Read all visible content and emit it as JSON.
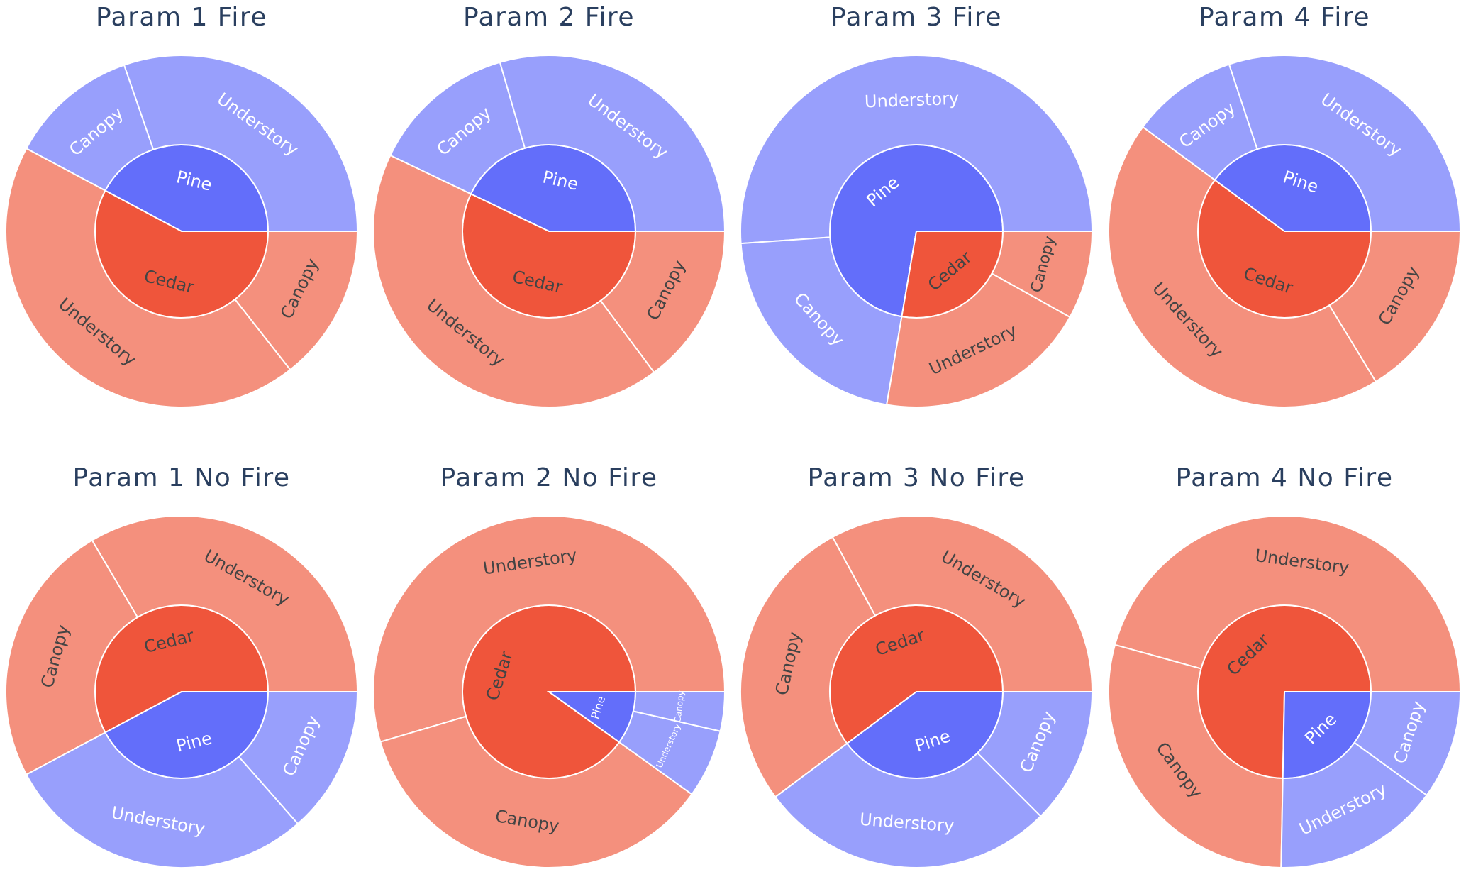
{
  "colors": {
    "pine_inner": "#636efa",
    "pine_outer": "#989ffc",
    "cedar_inner": "#ef553b",
    "cedar_outer": "#f4907d",
    "separator": "#ffffff",
    "title": "#2a3f5f",
    "label_on_blue": "#ffffff",
    "label_on_red": "#444444"
  },
  "chart_data": [
    {
      "type": "sunburst",
      "title": "Param 1 Fire",
      "rotation_deg": 0,
      "segments": [
        {
          "name": "Pine",
          "value": 0.422,
          "children": [
            {
              "name": "Understory",
              "value": 0.303
            },
            {
              "name": "Canopy",
              "value": 0.119
            }
          ]
        },
        {
          "name": "Cedar",
          "value": 0.578,
          "children": [
            {
              "name": "Understory",
              "value": 0.434
            },
            {
              "name": "Canopy",
              "value": 0.144
            }
          ]
        }
      ]
    },
    {
      "type": "sunburst",
      "title": "Param 2 Fire",
      "rotation_deg": 0,
      "segments": [
        {
          "name": "Pine",
          "value": 0.429,
          "children": [
            {
              "name": "Understory",
              "value": 0.295
            },
            {
              "name": "Canopy",
              "value": 0.134
            }
          ]
        },
        {
          "name": "Cedar",
          "value": 0.571,
          "children": [
            {
              "name": "Understory",
              "value": 0.423
            },
            {
              "name": "Canopy",
              "value": 0.148
            }
          ]
        }
      ]
    },
    {
      "type": "sunburst",
      "title": "Param 3 Fire",
      "rotation_deg": 0,
      "segments": [
        {
          "name": "Pine",
          "value": 0.723,
          "children": [
            {
              "name": "Understory",
              "value": 0.511
            },
            {
              "name": "Canopy",
              "value": 0.212
            }
          ]
        },
        {
          "name": "Cedar",
          "value": 0.277,
          "children": [
            {
              "name": "Understory",
              "value": 0.196
            },
            {
              "name": "Canopy",
              "value": 0.081
            }
          ]
        }
      ]
    },
    {
      "type": "sunburst",
      "title": "Param 4 Fire",
      "rotation_deg": 0,
      "segments": [
        {
          "name": "Pine",
          "value": 0.399,
          "children": [
            {
              "name": "Understory",
              "value": 0.301
            },
            {
              "name": "Canopy",
              "value": 0.098
            }
          ]
        },
        {
          "name": "Cedar",
          "value": 0.601,
          "children": [
            {
              "name": "Understory",
              "value": 0.438
            },
            {
              "name": "Canopy",
              "value": 0.163
            }
          ]
        }
      ]
    },
    {
      "type": "sunburst",
      "title": "Param 1 No Fire",
      "rotation_deg": 0,
      "segments": [
        {
          "name": "Cedar",
          "value": 0.578,
          "children": [
            {
              "name": "Understory",
              "value": 0.335
            },
            {
              "name": "Canopy",
              "value": 0.243
            }
          ]
        },
        {
          "name": "Pine",
          "value": 0.422,
          "children": [
            {
              "name": "Understory",
              "value": 0.287
            },
            {
              "name": "Canopy",
              "value": 0.135
            }
          ]
        }
      ]
    },
    {
      "type": "sunburst",
      "title": "Param 2 No Fire",
      "rotation_deg": 0,
      "segments": [
        {
          "name": "Cedar",
          "value": 0.901,
          "children": [
            {
              "name": "Understory",
              "value": 0.546
            },
            {
              "name": "Canopy",
              "value": 0.355
            }
          ]
        },
        {
          "name": "Pine",
          "value": 0.099,
          "children": [
            {
              "name": "Understory",
              "value": 0.063
            },
            {
              "name": "Canopy",
              "value": 0.036
            }
          ]
        }
      ]
    },
    {
      "type": "sunburst",
      "title": "Param 3 No Fire",
      "rotation_deg": 0,
      "segments": [
        {
          "name": "Cedar",
          "value": 0.602,
          "children": [
            {
              "name": "Understory",
              "value": 0.329
            },
            {
              "name": "Canopy",
              "value": 0.273
            }
          ]
        },
        {
          "name": "Pine",
          "value": 0.398,
          "children": [
            {
              "name": "Understory",
              "value": 0.273
            },
            {
              "name": "Canopy",
              "value": 0.125
            }
          ]
        }
      ]
    },
    {
      "type": "sunburst",
      "title": "Param 4 No Fire",
      "rotation_deg": 0,
      "segments": [
        {
          "name": "Cedar",
          "value": 0.747,
          "children": [
            {
              "name": "Understory",
              "value": 0.457
            },
            {
              "name": "Canopy",
              "value": 0.29
            }
          ]
        },
        {
          "name": "Pine",
          "value": 0.253,
          "children": [
            {
              "name": "Understory",
              "value": 0.153
            },
            {
              "name": "Canopy",
              "value": 0.1
            }
          ]
        }
      ]
    }
  ]
}
